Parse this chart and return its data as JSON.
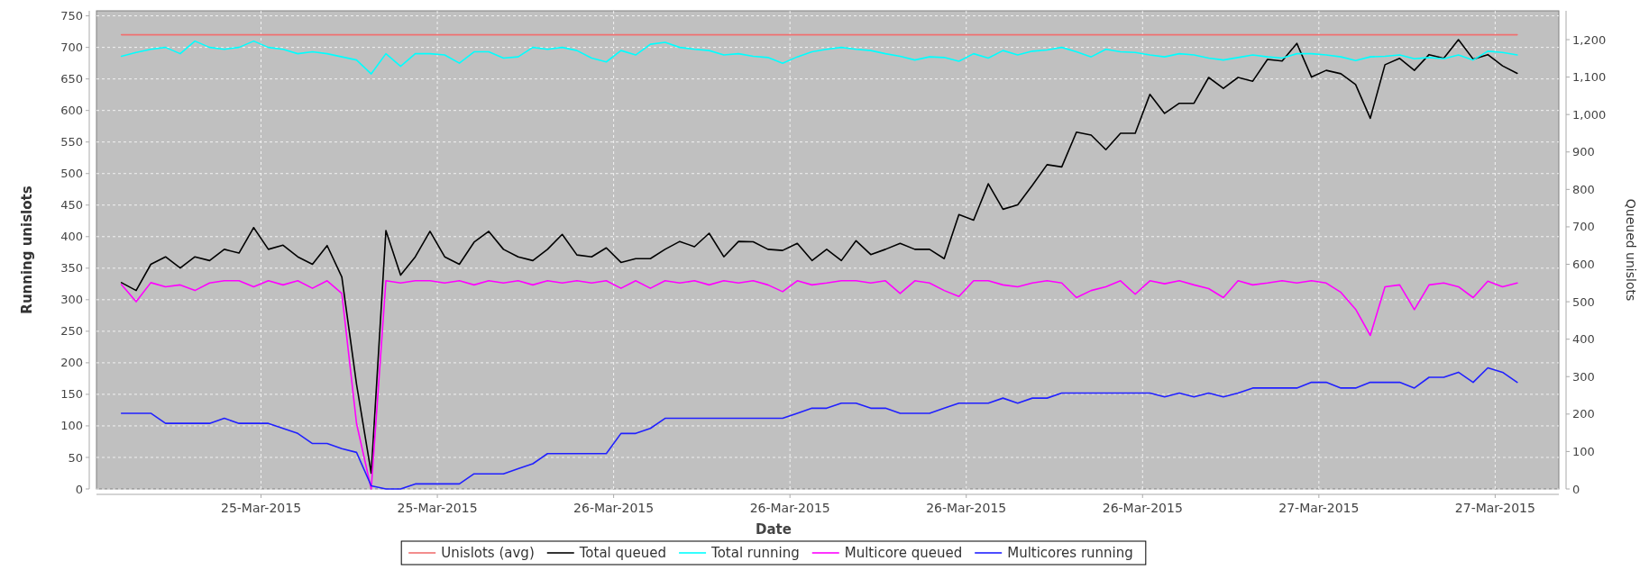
{
  "chart_data": {
    "type": "line",
    "xlabel": "Date",
    "ylabel": "Running unislots",
    "y2label": "Queued unislots",
    "x": [
      "2015-03-25T07:15",
      "2015-03-25T07:45",
      "2015-03-25T08:15",
      "2015-03-25T08:45",
      "2015-03-25T09:15",
      "2015-03-25T09:45",
      "2015-03-25T10:15",
      "2015-03-25T10:45",
      "2015-03-25T11:15",
      "2015-03-25T11:45",
      "2015-03-25T12:15",
      "2015-03-25T12:45",
      "2015-03-25T13:15",
      "2015-03-25T13:45",
      "2015-03-25T14:15",
      "2015-03-25T14:45",
      "2015-03-25T15:15",
      "2015-03-25T15:45",
      "2015-03-25T16:15",
      "2015-03-25T16:45",
      "2015-03-25T17:15",
      "2015-03-25T17:45",
      "2015-03-25T18:15",
      "2015-03-25T18:45",
      "2015-03-25T19:15",
      "2015-03-25T19:45",
      "2015-03-25T20:15",
      "2015-03-25T20:45",
      "2015-03-25T21:15",
      "2015-03-25T21:45",
      "2015-03-25T22:15",
      "2015-03-25T22:45",
      "2015-03-25T23:15",
      "2015-03-25T23:45",
      "2015-03-26T00:15",
      "2015-03-26T00:45",
      "2015-03-26T01:15",
      "2015-03-26T01:45",
      "2015-03-26T02:15",
      "2015-03-26T02:45",
      "2015-03-26T03:15",
      "2015-03-26T03:45",
      "2015-03-26T04:15",
      "2015-03-26T04:45",
      "2015-03-26T05:15",
      "2015-03-26T05:45",
      "2015-03-26T06:15",
      "2015-03-26T06:45",
      "2015-03-26T07:15",
      "2015-03-26T07:45",
      "2015-03-26T08:15",
      "2015-03-26T08:45",
      "2015-03-26T09:15",
      "2015-03-26T09:45",
      "2015-03-26T10:15",
      "2015-03-26T10:45",
      "2015-03-26T11:15",
      "2015-03-26T11:45",
      "2015-03-26T12:15",
      "2015-03-26T12:45",
      "2015-03-26T13:15",
      "2015-03-26T13:45",
      "2015-03-26T14:15",
      "2015-03-26T14:45",
      "2015-03-26T15:15",
      "2015-03-26T15:45",
      "2015-03-26T16:15",
      "2015-03-26T16:45",
      "2015-03-26T17:15",
      "2015-03-26T17:45",
      "2015-03-26T18:15",
      "2015-03-26T18:45",
      "2015-03-26T19:15",
      "2015-03-26T19:45",
      "2015-03-26T20:15",
      "2015-03-26T20:45",
      "2015-03-26T21:15",
      "2015-03-26T21:45",
      "2015-03-26T22:15",
      "2015-03-26T22:45",
      "2015-03-26T23:15",
      "2015-03-26T23:45",
      "2015-03-27T00:15",
      "2015-03-27T00:45",
      "2015-03-27T01:15",
      "2015-03-27T01:45",
      "2015-03-27T02:15",
      "2015-03-27T02:45",
      "2015-03-27T03:15",
      "2015-03-27T03:45",
      "2015-03-27T04:15",
      "2015-03-27T04:45",
      "2015-03-27T05:15",
      "2015-03-27T05:45",
      "2015-03-27T06:15",
      "2015-03-27T06:45"
    ],
    "series": [
      {
        "name": "Unislots (avg)",
        "color": "#f07070",
        "x": [
          "2015-03-25T07:15",
          "2015-03-27T06:45"
        ],
        "values": [
          720,
          720
        ]
      },
      {
        "name": "Total queued",
        "color": "#000000",
        "axis": "y2",
        "values": [
          551,
          530,
          600,
          620,
          590,
          620,
          610,
          640,
          630,
          698,
          640,
          651,
          620,
          600,
          650,
          566,
          280,
          42,
          690,
          571,
          620,
          688,
          620,
          600,
          659,
          688,
          640,
          620,
          610,
          640,
          680,
          625,
          620,
          644,
          605,
          615,
          615,
          640,
          661,
          647,
          683,
          620,
          661,
          660,
          640,
          637,
          656,
          610,
          640,
          610,
          663,
          626,
          640,
          656,
          640,
          640,
          615,
          733,
          718,
          815,
          747,
          759,
          811,
          866,
          860,
          953,
          945,
          906,
          950,
          950,
          1054,
          1003,
          1030,
          1030,
          1099,
          1070,
          1099,
          1089,
          1147,
          1143,
          1190,
          1100,
          1118,
          1109,
          1080,
          990,
          1133,
          1150,
          1118,
          1160,
          1150,
          1200,
          1148,
          1160,
          1130,
          1110
        ]
      },
      {
        "name": "Total running",
        "color": "#00ffff",
        "values": [
          686,
          692,
          697,
          700,
          690,
          710,
          700,
          697,
          700,
          710,
          700,
          697,
          690,
          693,
          690,
          685,
          680,
          658,
          690,
          670,
          690,
          690,
          688,
          675,
          693,
          693,
          683,
          685,
          700,
          697,
          700,
          695,
          683,
          677,
          695,
          688,
          705,
          708,
          700,
          697,
          695,
          688,
          690,
          686,
          684,
          675,
          685,
          693,
          697,
          700,
          697,
          695,
          690,
          686,
          680,
          685,
          684,
          678,
          690,
          683,
          695,
          688,
          694,
          696,
          700,
          693,
          685,
          697,
          693,
          692,
          688,
          685,
          690,
          688,
          683,
          680,
          684,
          688,
          685,
          683,
          690,
          690,
          688,
          685,
          679,
          685,
          686,
          688,
          682,
          684,
          682,
          688,
          680,
          694,
          692,
          688
        ]
      },
      {
        "name": "Multicore queued",
        "color": "#ff00ff",
        "axis": "y2",
        "values": [
          546,
          500,
          551,
          540,
          545,
          530,
          550,
          556,
          556,
          540,
          556,
          545,
          556,
          536,
          556,
          522,
          175,
          0,
          556,
          550,
          556,
          556,
          550,
          556,
          545,
          556,
          550,
          556,
          545,
          556,
          550,
          556,
          550,
          556,
          536,
          556,
          536,
          556,
          550,
          556,
          545,
          556,
          550,
          556,
          545,
          527,
          556,
          545,
          550,
          556,
          556,
          550,
          556,
          522,
          556,
          550,
          530,
          514,
          556,
          556,
          545,
          540,
          550,
          556,
          550,
          511,
          530,
          540,
          556,
          520,
          556,
          548,
          556,
          545,
          535,
          511,
          556,
          545,
          550,
          556,
          550,
          556,
          550,
          525,
          480,
          410,
          540,
          545,
          479,
          545,
          550,
          540,
          511,
          555,
          540,
          550
        ]
      },
      {
        "name": "Multicores running",
        "color": "#2020ff",
        "values": [
          120,
          120,
          120,
          104,
          104,
          104,
          104,
          112,
          104,
          104,
          104,
          96,
          88,
          72,
          72,
          64,
          58,
          5,
          0,
          0,
          8,
          8,
          8,
          8,
          24,
          24,
          24,
          32,
          40,
          56,
          56,
          56,
          56,
          56,
          88,
          88,
          96,
          112,
          112,
          112,
          112,
          112,
          112,
          112,
          112,
          112,
          120,
          128,
          128,
          136,
          136,
          128,
          128,
          120,
          120,
          120,
          128,
          136,
          136,
          136,
          144,
          136,
          144,
          144,
          152,
          152,
          152,
          152,
          152,
          152,
          152,
          146,
          152,
          146,
          152,
          146,
          152,
          160,
          160,
          160,
          160,
          169,
          169,
          160,
          160,
          169,
          169,
          169,
          160,
          177,
          177,
          185,
          169,
          192,
          185,
          169
        ]
      }
    ],
    "xlim": [
      "2015-03-25T06:24",
      "2015-03-27T08:10"
    ],
    "xticks": [
      {
        "value": "2015-03-25T12:00",
        "label": "25-Mar-2015"
      },
      {
        "value": "2015-03-25T18:00",
        "label": "25-Mar-2015"
      },
      {
        "value": "2015-03-26T00:00",
        "label": "26-Mar-2015"
      },
      {
        "value": "2015-03-26T06:00",
        "label": "26-Mar-2015"
      },
      {
        "value": "2015-03-26T12:00",
        "label": "26-Mar-2015"
      },
      {
        "value": "2015-03-26T18:00",
        "label": "26-Mar-2015"
      },
      {
        "value": "2015-03-27T00:00",
        "label": "27-Mar-2015"
      },
      {
        "value": "2015-03-27T06:00",
        "label": "27-Mar-2015"
      }
    ],
    "ylim": [
      0,
      758
    ],
    "yticks": [
      0,
      50,
      100,
      150,
      200,
      250,
      300,
      350,
      400,
      450,
      500,
      550,
      600,
      650,
      700,
      750
    ],
    "y2lim": [
      0,
      1277
    ],
    "y2ticks": [
      0,
      100,
      200,
      300,
      400,
      500,
      600,
      700,
      800,
      900,
      {
        "value": 1000,
        "label": "1,000"
      },
      {
        "value": 1100,
        "label": "1,100"
      },
      {
        "value": 1200,
        "label": "1,200"
      }
    ],
    "grid": true,
    "legend": "bottom"
  }
}
